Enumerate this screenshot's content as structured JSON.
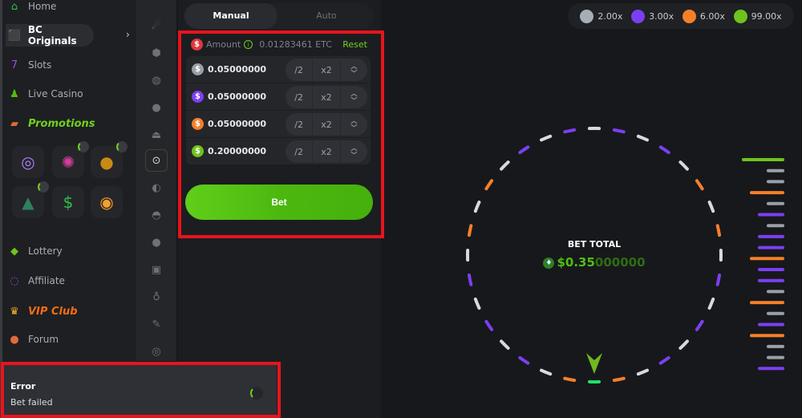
{
  "sidebar": {
    "items": [
      {
        "label": "Home",
        "icon": "home-icon"
      },
      {
        "label": "BC Originals",
        "icon": "dice-icon"
      },
      {
        "label": "Slots",
        "icon": "slots-icon"
      },
      {
        "label": "Live Casino",
        "icon": "live-casino-icon"
      },
      {
        "label": "Promotions",
        "icon": "promotions-icon"
      },
      {
        "label": "Lottery",
        "icon": "lottery-ticket-icon"
      },
      {
        "label": "Affiliate",
        "icon": "affiliate-icon"
      },
      {
        "label": "VIP Club",
        "icon": "crown-icon"
      },
      {
        "label": "Forum",
        "icon": "forum-icon"
      }
    ],
    "promo_tiles": [
      "target-icon",
      "wheel-icon",
      "piggy-bank-icon",
      "rocket-icon",
      "cash-tag-icon",
      "coin-icon"
    ]
  },
  "tabs": {
    "manual": "Manual",
    "auto": "Auto"
  },
  "amount": {
    "label": "Amount",
    "balance": "0.01283461 ETC",
    "reset": "Reset"
  },
  "bet_rows": [
    {
      "value": "0.05000000",
      "color": "#9aa0a8",
      "half": "/2",
      "double": "x2"
    },
    {
      "value": "0.05000000",
      "color": "#7b3ff2",
      "half": "/2",
      "double": "x2"
    },
    {
      "value": "0.05000000",
      "color": "#f5802a",
      "half": "/2",
      "double": "x2"
    },
    {
      "value": "0.20000000",
      "color": "#6fc31d",
      "half": "/2",
      "double": "x2"
    }
  ],
  "bet_button": "Bet",
  "toast": {
    "title": "Error",
    "message": "Bet failed"
  },
  "legend": [
    {
      "label": "2.00x",
      "color": "#a8aeb6"
    },
    {
      "label": "3.00x",
      "color": "#7b3ff2"
    },
    {
      "label": "6.00x",
      "color": "#f5802a"
    },
    {
      "label": "99.00x",
      "color": "#6fc31d"
    }
  ],
  "bet_total": {
    "label": "BET TOTAL",
    "value_bright": "$0.35",
    "value_dim": "000000"
  },
  "wheel_segments": [
    "w",
    "p",
    "w",
    "p",
    "w",
    "o",
    "w",
    "o",
    "w",
    "p",
    "w",
    "p",
    "w",
    "p",
    "w",
    "o",
    "g",
    "o",
    "w",
    "p",
    "w",
    "p",
    "w",
    "p",
    "w",
    "o",
    "w",
    "o",
    "w",
    "p",
    "w",
    "p"
  ],
  "history": [
    "g",
    "w",
    "w",
    "o",
    "w",
    "p",
    "w",
    "p",
    "p",
    "o",
    "p",
    "p",
    "w",
    "o",
    "w",
    "p",
    "o",
    "w",
    "w",
    "p"
  ],
  "colors": {
    "w": "#d4dae4",
    "p": "#7b3ff2",
    "o": "#f5802a",
    "g": "#22e06b",
    "hg": "#6fc31d",
    "hw": "#9aa0a8"
  }
}
